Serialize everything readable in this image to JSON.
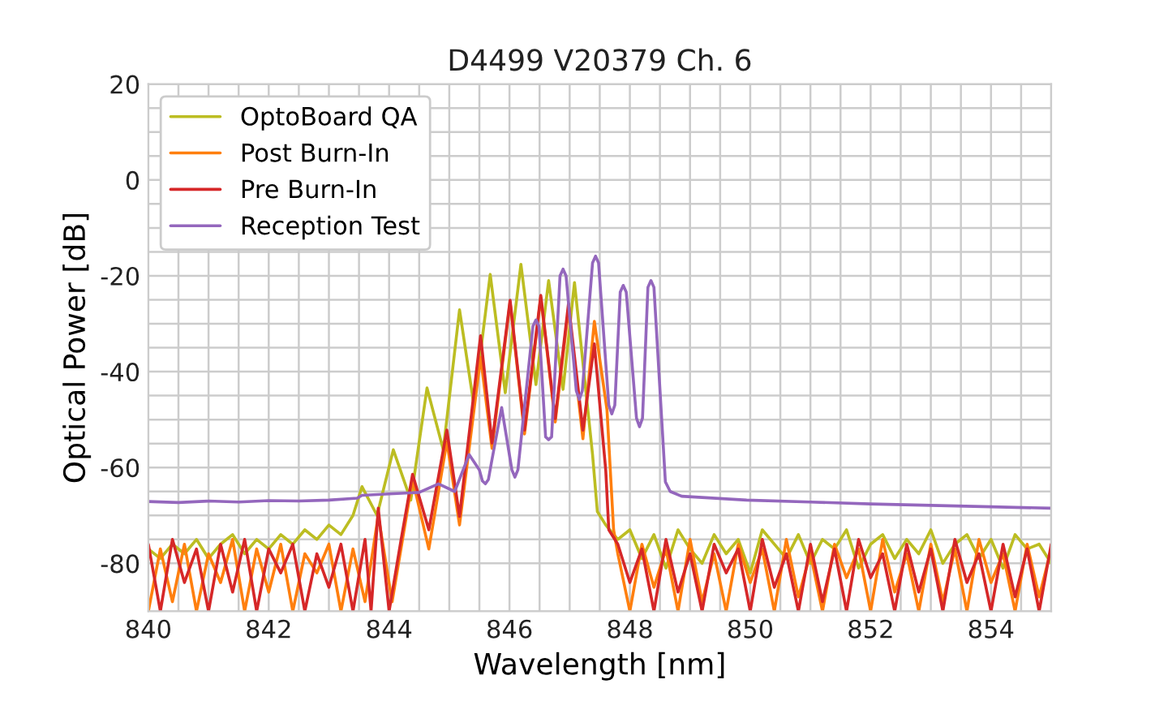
{
  "chart_data": {
    "type": "line",
    "title": "D4499 V20379 Ch. 6",
    "xlabel": "Wavelength [nm]",
    "ylabel": "Optical Power [dB]",
    "xlim": [
      840,
      855
    ],
    "ylim": [
      -90,
      20
    ],
    "xticks": [
      840,
      {
        "value": 840.5,
        "label": null
      },
      {
        "value": 841,
        "label": null
      },
      {
        "value": 841.5,
        "label": null
      },
      842,
      {
        "value": 842.5,
        "label": null
      },
      {
        "value": 843,
        "label": null
      },
      {
        "value": 843.5,
        "label": null
      },
      844,
      {
        "value": 844.5,
        "label": null
      },
      {
        "value": 845,
        "label": null
      },
      {
        "value": 845.5,
        "label": null
      },
      846,
      {
        "value": 846.5,
        "label": null
      },
      {
        "value": 847,
        "label": null
      },
      {
        "value": 847.5,
        "label": null
      },
      848,
      {
        "value": 848.5,
        "label": null
      },
      {
        "value": 849,
        "label": null
      },
      {
        "value": 849.5,
        "label": null
      },
      850,
      {
        "value": 850.5,
        "label": null
      },
      {
        "value": 851,
        "label": null
      },
      {
        "value": 851.5,
        "label": null
      },
      852,
      {
        "value": 852.5,
        "label": null
      },
      {
        "value": 853,
        "label": null
      },
      {
        "value": 853.5,
        "label": null
      },
      854,
      {
        "value": 854.5,
        "label": null
      },
      {
        "value": 855,
        "label": null
      }
    ],
    "yticks": [
      {
        "value": -90,
        "label": null
      },
      -80,
      {
        "value": -75,
        "label": null
      },
      {
        "value": -70,
        "label": null
      },
      {
        "value": -65,
        "label": null
      },
      -60,
      {
        "value": -55,
        "label": null
      },
      {
        "value": -50,
        "label": null
      },
      {
        "value": -45,
        "label": null
      },
      -40,
      {
        "value": -35,
        "label": null
      },
      {
        "value": -30,
        "label": null
      },
      {
        "value": -25,
        "label": null
      },
      -20,
      {
        "value": -15,
        "label": null
      },
      {
        "value": -10,
        "label": null
      },
      {
        "value": -5,
        "label": null
      },
      0,
      {
        "value": 5,
        "label": null
      },
      {
        "value": 10,
        "label": null
      },
      {
        "value": 15,
        "label": null
      },
      20
    ],
    "grid": true,
    "legend": "top left",
    "marker": "none",
    "line_style": "solid",
    "series": [
      {
        "name": "OptoBoard QA",
        "color": "#bcbd22",
        "x": [
          840.0,
          840.2,
          840.4,
          840.6,
          840.8,
          841.0,
          841.2,
          841.4,
          841.6,
          841.8,
          842.0,
          842.2,
          842.4,
          842.6,
          842.8,
          843.0,
          843.2,
          843.4,
          843.55,
          843.8,
          844.07,
          844.36,
          844.63,
          844.9,
          845.17,
          845.41,
          845.68,
          845.93,
          846.19,
          846.44,
          846.65,
          846.89,
          847.08,
          847.38,
          847.46,
          847.6,
          847.8,
          848.0,
          848.2,
          848.4,
          848.6,
          848.8,
          849.0,
          849.2,
          849.4,
          849.6,
          849.8,
          850.0,
          850.2,
          850.4,
          850.6,
          850.8,
          851.0,
          851.2,
          851.4,
          851.6,
          851.8,
          852.0,
          852.2,
          852.4,
          852.6,
          852.8,
          853.0,
          853.2,
          853.4,
          853.6,
          853.8,
          854.0,
          854.2,
          854.4,
          854.6,
          854.8,
          855.0
        ],
        "values": [
          -77,
          -79,
          -76,
          -78,
          -75,
          -79,
          -76,
          -74,
          -78,
          -75,
          -77,
          -74,
          -76,
          -73,
          -75,
          -72,
          -74,
          -70,
          -64,
          -70,
          -56.3,
          -66.8,
          -43.4,
          -56.3,
          -27.1,
          -47.1,
          -19.7,
          -44.4,
          -17.6,
          -42.7,
          -21,
          -43.7,
          -21.4,
          -57.3,
          -69.2,
          -72,
          -75,
          -73,
          -79,
          -74,
          -81,
          -73,
          -77,
          -80,
          -74,
          -78,
          -75,
          -82,
          -73,
          -76,
          -79,
          -74,
          -80,
          -75,
          -77,
          -73,
          -81,
          -76,
          -74,
          -79,
          -75,
          -78,
          -73,
          -80,
          -76,
          -74,
          -79,
          -75,
          -81,
          -74,
          -77,
          -76,
          -80
        ]
      },
      {
        "name": "Post Burn-In",
        "color": "#ff7f0e",
        "x": [
          840.0,
          840.2,
          840.4,
          840.6,
          840.8,
          841.0,
          841.2,
          841.4,
          841.6,
          841.8,
          842.0,
          842.2,
          842.4,
          842.6,
          842.8,
          843.0,
          843.2,
          843.4,
          843.6,
          843.82,
          844.05,
          844.39,
          844.66,
          844.96,
          845.17,
          845.52,
          845.71,
          846.01,
          846.25,
          846.52,
          846.76,
          846.98,
          847.22,
          847.41,
          847.62,
          847.73,
          847.8,
          848.0,
          848.2,
          848.4,
          848.6,
          848.8,
          849.0,
          849.2,
          849.4,
          849.6,
          849.8,
          850.0,
          850.2,
          850.4,
          850.6,
          850.8,
          851.0,
          851.2,
          851.4,
          851.6,
          851.8,
          852.0,
          852.2,
          852.4,
          852.6,
          852.8,
          853.0,
          853.2,
          853.4,
          853.6,
          853.8,
          854.0,
          854.2,
          854.4,
          854.6,
          854.8,
          855.0
        ],
        "values": [
          -90,
          -77,
          -88,
          -76,
          -90,
          -78,
          -84,
          -75,
          -90,
          -77,
          -86,
          -76,
          -90,
          -78,
          -82,
          -76,
          -90,
          -77,
          -88,
          -70,
          -88,
          -62.5,
          -77,
          -54.6,
          -72,
          -37,
          -56,
          -25.5,
          -53,
          -24.5,
          -50.5,
          -27,
          -54,
          -29.5,
          -48,
          -73,
          -78,
          -90,
          -76,
          -85,
          -77,
          -90,
          -75,
          -88,
          -78,
          -90,
          -76,
          -84,
          -77,
          -90,
          -75,
          -87,
          -78,
          -90,
          -76,
          -83,
          -77,
          -90,
          -75,
          -86,
          -78,
          -90,
          -76,
          -88,
          -77,
          -90,
          -75,
          -84,
          -78,
          -90,
          -76,
          -87,
          -77
        ]
      },
      {
        "name": "Pre Burn-In",
        "color": "#d62728",
        "x": [
          840.0,
          840.2,
          840.4,
          840.6,
          840.8,
          841.0,
          841.2,
          841.4,
          841.6,
          841.8,
          842.0,
          842.2,
          842.4,
          842.6,
          842.8,
          843.0,
          843.2,
          843.4,
          843.6,
          843.7,
          843.82,
          844.0,
          844.2,
          844.39,
          844.66,
          844.96,
          845.17,
          845.52,
          845.71,
          846.01,
          846.25,
          846.52,
          846.76,
          846.98,
          847.22,
          847.41,
          847.6,
          847.65,
          847.8,
          848.0,
          848.2,
          848.4,
          848.6,
          848.8,
          849.0,
          849.2,
          849.4,
          849.6,
          849.8,
          850.0,
          850.2,
          850.4,
          850.6,
          850.8,
          851.0,
          851.2,
          851.4,
          851.6,
          851.8,
          852.0,
          852.2,
          852.4,
          852.6,
          852.8,
          853.0,
          853.2,
          853.4,
          853.6,
          853.8,
          854.0,
          854.2,
          854.4,
          854.6,
          854.8,
          855.0
        ],
        "values": [
          -76,
          -90,
          -75,
          -84,
          -77,
          -90,
          -76,
          -86,
          -75,
          -90,
          -77,
          -82,
          -76,
          -90,
          -78,
          -85,
          -76,
          -90,
          -75,
          -90,
          -68.5,
          -90,
          -75,
          -61.4,
          -73,
          -52.2,
          -70.2,
          -32.5,
          -54.9,
          -25.1,
          -52.2,
          -24.1,
          -49.8,
          -25.8,
          -52.2,
          -34.2,
          -60.7,
          -73,
          -76,
          -84,
          -77,
          -90,
          -75,
          -86,
          -78,
          -90,
          -76,
          -82,
          -77,
          -90,
          -75,
          -85,
          -78,
          -90,
          -76,
          -88,
          -77,
          -90,
          -75,
          -83,
          -78,
          -90,
          -76,
          -86,
          -77,
          -90,
          -75,
          -84,
          -78,
          -90,
          -76,
          -87,
          -77,
          -90,
          -76
        ]
      },
      {
        "name": "Reception Test",
        "color": "#9467bd",
        "x": [
          840.0,
          840.5,
          841.0,
          841.5,
          842.0,
          842.5,
          843.0,
          843.47,
          843.55,
          844.0,
          844.5,
          844.82,
          845.09,
          845.33,
          845.5,
          845.55,
          845.6,
          845.65,
          845.7,
          845.87,
          846.04,
          846.09,
          846.14,
          846.39,
          846.44,
          846.49,
          846.6,
          846.65,
          846.7,
          846.84,
          846.89,
          846.94,
          847.11,
          847.16,
          847.21,
          847.38,
          847.43,
          847.48,
          847.65,
          847.7,
          847.75,
          847.84,
          847.89,
          847.94,
          848.11,
          848.16,
          848.21,
          848.3,
          848.35,
          848.4,
          848.59,
          848.67,
          848.86,
          849.94,
          851.0,
          852.0,
          853.0,
          854.0,
          855.0
        ],
        "values": [
          -67.1,
          -67.3,
          -67,
          -67.2,
          -66.9,
          -67,
          -66.8,
          -66.4,
          -65.8,
          -65.5,
          -65.2,
          -63.4,
          -65,
          -57.3,
          -60.5,
          -62.8,
          -63.4,
          -62.5,
          -59,
          -47.5,
          -60.5,
          -62,
          -60.5,
          -30.5,
          -29.2,
          -30.5,
          -53.6,
          -54.2,
          -53.6,
          -20,
          -18.6,
          -20,
          -44,
          -45.8,
          -44,
          -17.3,
          -15.9,
          -17.3,
          -47,
          -48.8,
          -47,
          -23.4,
          -22,
          -23.4,
          -49.7,
          -51.5,
          -49.7,
          -22.4,
          -21,
          -22.4,
          -63,
          -65,
          -66,
          -66.8,
          -67.2,
          -67.6,
          -67.9,
          -68.2,
          -68.5
        ]
      }
    ]
  }
}
